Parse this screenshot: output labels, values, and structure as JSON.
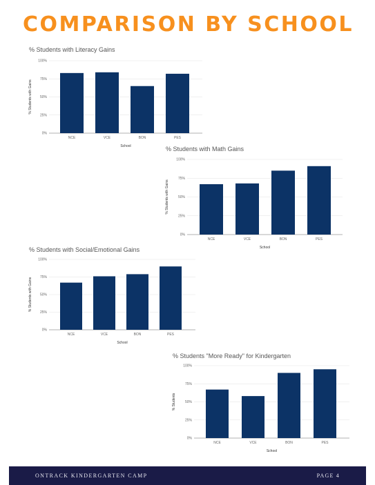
{
  "page": {
    "title": "COMPARISON BY SCHOOL",
    "footer_left": "ONTRACK KINDERGARTEN CAMP",
    "footer_right": "PAGE 4",
    "title_color": "#f7901e",
    "bar_color": "#0c3366",
    "footer_color": "#1a1b47"
  },
  "chart_data": [
    {
      "type": "bar",
      "title": "% Students with Literacy Gains",
      "categories": [
        "NCE",
        "VCE",
        "BON",
        "PES"
      ],
      "values": [
        83,
        84,
        65,
        82
      ],
      "xlabel": "School",
      "ylabel": "% Students with Gains",
      "ylim": [
        0,
        100
      ],
      "yticks": [
        "0%",
        "25%",
        "50%",
        "75%",
        "100%"
      ],
      "grid": true
    },
    {
      "type": "bar",
      "title": "% Students with Math Gains",
      "categories": [
        "NCE",
        "VCE",
        "BON",
        "PES"
      ],
      "values": [
        67,
        68,
        85,
        91
      ],
      "xlabel": "School",
      "ylabel": "% Students with Gains",
      "ylim": [
        0,
        100
      ],
      "yticks": [
        "0%",
        "25%",
        "50%",
        "75%",
        "100%"
      ],
      "grid": true
    },
    {
      "type": "bar",
      "title": "% Students with Social/Emotional Gains",
      "categories": [
        "NCE",
        "VCE",
        "BON",
        "PES"
      ],
      "values": [
        67,
        76,
        79,
        90
      ],
      "xlabel": "School",
      "ylabel": "% Students with Gains",
      "ylim": [
        0,
        100
      ],
      "yticks": [
        "0%",
        "25%",
        "50%",
        "75%",
        "100%"
      ],
      "grid": true
    },
    {
      "type": "bar",
      "title": "% Students \"More Ready\" for Kindergarten",
      "categories": [
        "NCE",
        "VCE",
        "BON",
        "PES"
      ],
      "values": [
        67,
        58,
        90,
        95
      ],
      "xlabel": "School",
      "ylabel": "% Students",
      "ylim": [
        0,
        100
      ],
      "yticks": [
        "0%",
        "25%",
        "50%",
        "75%",
        "100%"
      ],
      "grid": true
    }
  ]
}
